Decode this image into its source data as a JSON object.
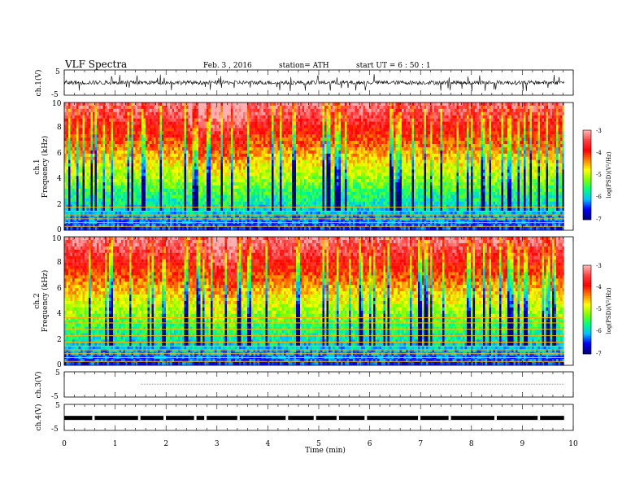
{
  "header": {
    "title": "VLF  Spectra",
    "date": "Feb. 3  , 2016",
    "station": "station= ATH",
    "start_ut": "start  UT  =   6  : 50 : 1"
  },
  "chart_data": {
    "type": "heatmap",
    "x": {
      "label": "Time  (min)",
      "ticks": [
        0,
        1,
        2,
        3,
        4,
        5,
        6,
        7,
        8,
        9,
        10
      ],
      "range": [
        0,
        10
      ],
      "data_end": 9.82
    },
    "panels": [
      {
        "id": "ch1-waveform",
        "type": "line",
        "ylabel": "ch.1(V)",
        "yticks": [
          5,
          -5
        ],
        "ylim": [
          -5,
          5
        ],
        "baseline": 0,
        "noise_amplitude": 0.8,
        "spike_amplitude": 3.5
      },
      {
        "id": "ch1-spectrogram",
        "type": "heatmap",
        "ylabel_line1": "ch.1",
        "ylabel_line2": "Frequency  (kHz)",
        "yticks": [
          0,
          2,
          4,
          6,
          8,
          10
        ],
        "ylim": [
          0,
          10
        ],
        "z_range_log_psd": [
          -7,
          -3
        ],
        "strong_emission_interval_min": [
          2.4,
          3.6
        ],
        "hum_lines_khz": [
          0.3,
          0.6,
          0.9,
          1.2,
          1.5,
          1.8
        ]
      },
      {
        "id": "ch2-spectrogram",
        "type": "heatmap",
        "ylabel_line1": "ch.2",
        "ylabel_line2": "Frequency  (kHz)",
        "yticks": [
          0,
          2,
          4,
          6,
          8,
          10
        ],
        "ylim": [
          0,
          10
        ],
        "z_range_log_psd": [
          -7,
          -3
        ],
        "strong_emission_interval_min": [
          2.8,
          3.4
        ],
        "hum_lines_khz": [
          0.3,
          0.6,
          0.9,
          1.2,
          1.5,
          1.8,
          2.3,
          2.8,
          3.3,
          3.7
        ]
      },
      {
        "id": "ch3-waveform",
        "type": "line",
        "ylabel": "ch.3(V)",
        "yticks": [
          5,
          -5
        ],
        "ylim": [
          -5,
          5
        ],
        "level": 0.1
      },
      {
        "id": "ch4-waveform",
        "type": "line",
        "ylabel": "ch.4(V)",
        "yticks": [
          5,
          -5
        ],
        "ylim": [
          -5,
          5
        ],
        "level": -0.2,
        "gaps_min": [
          0.55,
          1.45,
          1.95,
          2.55,
          2.75,
          3.4,
          4.35,
          4.9,
          5.35,
          5.9,
          6.95,
          7.55,
          8.45,
          9.3
        ]
      }
    ],
    "colorbar": {
      "label": "log(PSD)(V²/Hz)",
      "ticks": [
        -3,
        -4,
        -5,
        -6,
        -7
      ],
      "colors": [
        "#000080",
        "#0000ff",
        "#00c0ff",
        "#00ff80",
        "#80ff00",
        "#ffff00",
        "#ff8000",
        "#ff0000",
        "#ff4040",
        "#ffb0b0"
      ]
    }
  }
}
